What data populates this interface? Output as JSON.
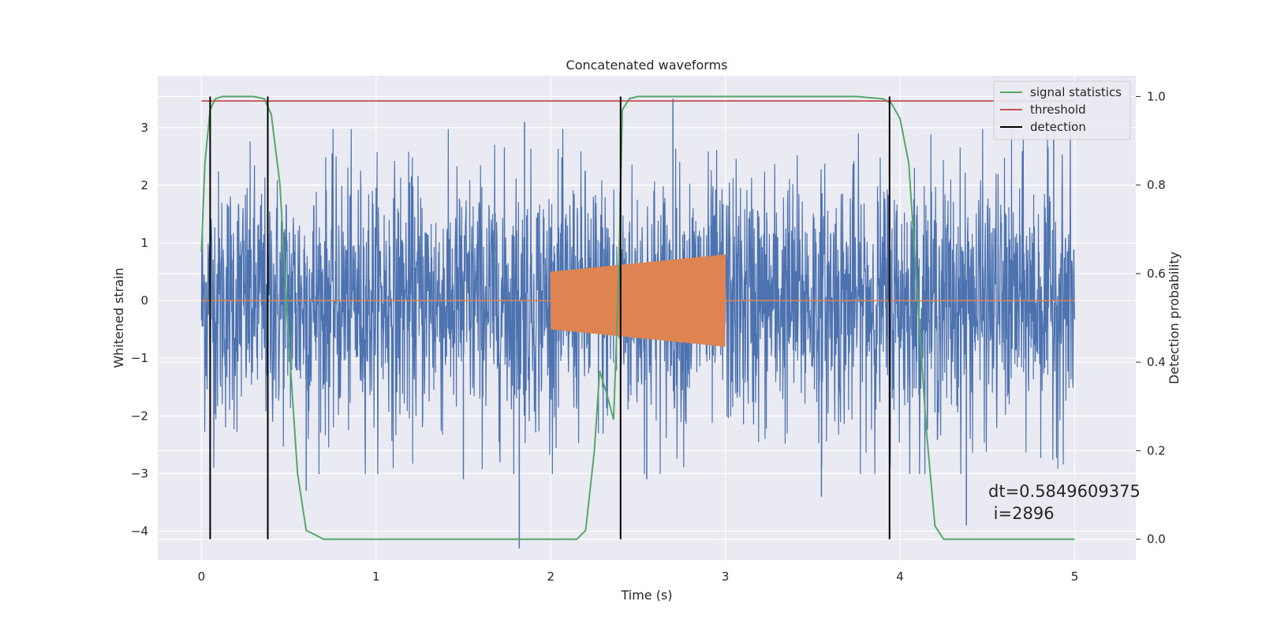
{
  "chart_data": {
    "type": "line",
    "title": "Concatenated waveforms",
    "xlabel": "Time (s)",
    "ylabel": "Whitened strain",
    "y2label": "Detection probability",
    "xlim": [
      -0.25,
      5.35
    ],
    "ylim": [
      -4.5,
      3.9
    ],
    "y2lim": [
      -0.047,
      1.047
    ],
    "xticks": [
      0,
      1,
      2,
      3,
      4,
      5
    ],
    "yticks": [
      -4,
      -3,
      -2,
      -1,
      0,
      1,
      2,
      3
    ],
    "y2ticks": [
      0.0,
      0.2,
      0.4,
      0.6,
      0.8,
      1.0
    ],
    "grid": true,
    "legend_position": "top-right",
    "series": [
      {
        "name": "",
        "role": "whitened noise strain",
        "color": "#4c72b0",
        "x_range": [
          0,
          5
        ],
        "typical_amplitude": 1.3,
        "envelope_max": 3.5,
        "envelope_min": -4.3,
        "spikes": [
          {
            "x": 1.82,
            "y": -4.3
          },
          {
            "x": 2.7,
            "y": 3.5
          },
          {
            "x": 1.85,
            "y": 3.1
          },
          {
            "x": 4.88,
            "y": 3.2
          },
          {
            "x": 2.55,
            "y": -3.1
          },
          {
            "x": 3.55,
            "y": -3.4
          },
          {
            "x": 4.38,
            "y": -3.9
          },
          {
            "x": 1.5,
            "y": -3.1
          },
          {
            "x": 0.6,
            "y": -3.3
          }
        ]
      },
      {
        "name": "",
        "role": "injected chirp",
        "color": "#dd8452",
        "x_range": [
          2.0,
          3.0
        ],
        "amplitude_start": 0.5,
        "amplitude_end": 0.8
      },
      {
        "name": "signal statistics",
        "axis": "right",
        "color": "#55a868",
        "x": [
          0.0,
          0.02,
          0.05,
          0.08,
          0.12,
          0.2,
          0.3,
          0.36,
          0.4,
          0.45,
          0.5,
          0.55,
          0.6,
          0.7,
          1.0,
          1.5,
          2.0,
          2.15,
          2.2,
          2.25,
          2.28,
          2.32,
          2.36,
          2.39,
          2.41,
          2.45,
          2.5,
          3.0,
          3.5,
          3.75,
          3.9,
          3.95,
          4.0,
          4.05,
          4.1,
          4.15,
          4.2,
          4.25,
          4.5,
          5.0
        ],
        "y": [
          0.65,
          0.85,
          0.97,
          0.995,
          1.0,
          1.0,
          1.0,
          0.995,
          0.96,
          0.8,
          0.45,
          0.15,
          0.02,
          0.0,
          0.0,
          0.0,
          0.0,
          0.0,
          0.02,
          0.2,
          0.38,
          0.33,
          0.27,
          0.6,
          0.97,
          0.995,
          1.0,
          1.0,
          1.0,
          1.0,
          0.995,
          0.985,
          0.95,
          0.85,
          0.55,
          0.25,
          0.03,
          0.0,
          0.0,
          0.0
        ]
      },
      {
        "name": "threshold",
        "axis": "right",
        "color": "#c44e52",
        "x": [
          0,
          5
        ],
        "y": [
          0.99,
          0.99
        ]
      },
      {
        "name": "detection",
        "axis": "right",
        "color": "#000000",
        "vlines_x": [
          0.05,
          0.38,
          2.4,
          3.94
        ],
        "vline_range": [
          0.0,
          1.0
        ]
      }
    ],
    "annotation": {
      "line1": "dt=0.5849609375",
      "line2": " i=2896",
      "x": 4.5,
      "y": -3.55
    }
  },
  "theme": {
    "background": "#ffffff",
    "axes_face": "#eaeaf2",
    "grid": "#ffffff",
    "text": "#262626"
  }
}
